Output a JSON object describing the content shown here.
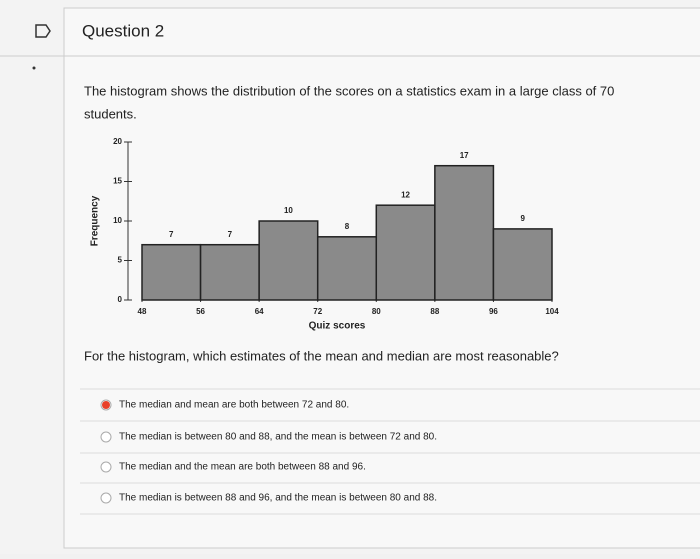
{
  "header": {
    "title": "Question 2"
  },
  "prompt": [
    "The histogram shows the distribution of the scores on a statistics exam in a large class of 70",
    "students."
  ],
  "chart_data": {
    "type": "histogram",
    "xlabel": "Quiz scores",
    "ylabel": "Frequency",
    "bins": [
      48,
      56,
      64,
      72,
      80,
      88,
      96,
      104
    ],
    "counts": [
      7,
      7,
      10,
      8,
      12,
      17,
      9
    ],
    "color": "#8a8a8a",
    "xlim": [
      48,
      104
    ],
    "xticks": [
      48,
      56,
      64,
      72,
      80,
      88,
      96,
      104
    ],
    "ylim": [
      0,
      20
    ],
    "yticks": [
      0,
      5,
      10,
      15,
      20
    ]
  },
  "question": "For the histogram, which estimates of the mean and median are most reasonable?",
  "options": {
    "selected": 0,
    "items": [
      "The median and mean are both between 72 and 80.",
      "The median is between 80 and 88, and the mean is between 72 and 80.",
      "The median and the mean are both between 88 and 96.",
      "The median is between 88 and 96, and the mean is between 80 and 88."
    ]
  }
}
